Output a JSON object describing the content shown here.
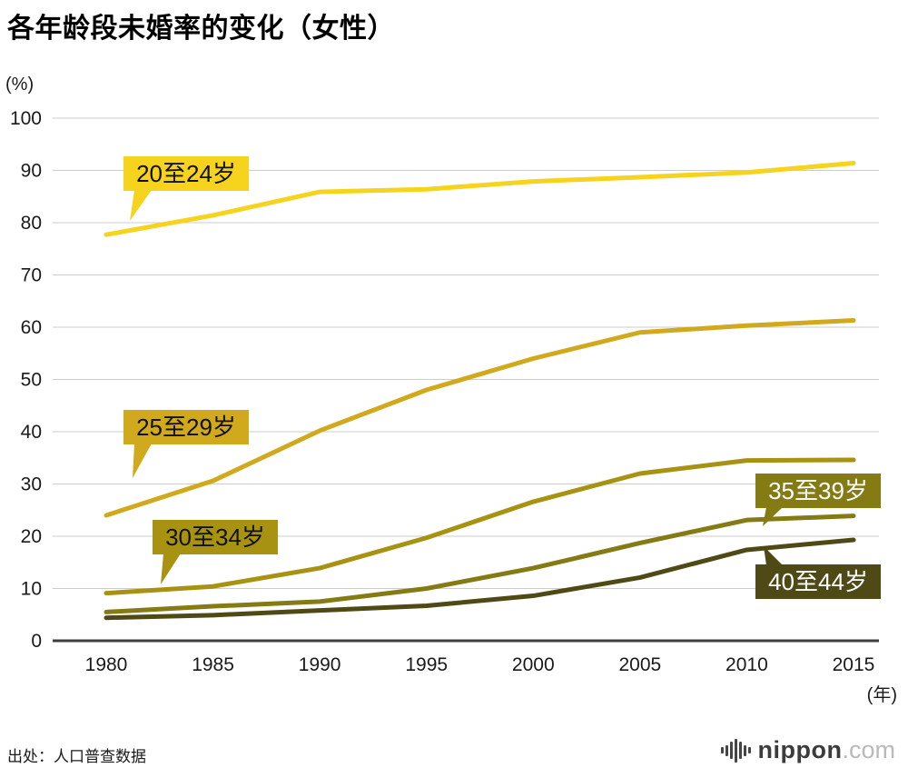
{
  "chart_data": {
    "type": "line",
    "title": "各年龄段未婚率的变化（女性）",
    "y_unit": "(%)",
    "x_unit": "(年)",
    "ylim": [
      0,
      100
    ],
    "y_ticks": [
      0,
      10,
      20,
      30,
      40,
      50,
      60,
      70,
      80,
      90,
      100
    ],
    "grid": "horizontal",
    "legend_position": "inline-labels",
    "categories": [
      1980,
      1985,
      1990,
      1995,
      2000,
      2005,
      2010,
      2015
    ],
    "series": [
      {
        "key": "age-20-24",
        "label": "20至24岁",
        "color": "#f6d31c",
        "label_text_color": "#111111",
        "values": [
          77.7,
          81.4,
          85.9,
          86.4,
          87.9,
          88.7,
          89.6,
          91.4
        ]
      },
      {
        "key": "age-25-29",
        "label": "25至29岁",
        "color": "#d1a91c",
        "label_text_color": "#111111",
        "values": [
          24.0,
          30.6,
          40.2,
          48.0,
          54.0,
          59.0,
          60.3,
          61.3
        ]
      },
      {
        "key": "age-30-34",
        "label": "30至34岁",
        "color": "#a89212",
        "label_text_color": "#111111",
        "values": [
          9.1,
          10.4,
          13.9,
          19.7,
          26.6,
          32.0,
          34.5,
          34.6
        ]
      },
      {
        "key": "age-35-39",
        "label": "35至39岁",
        "color": "#857b14",
        "label_text_color": "#ffffff",
        "values": [
          5.5,
          6.6,
          7.5,
          10.0,
          13.9,
          18.7,
          23.1,
          23.9
        ]
      },
      {
        "key": "age-40-44",
        "label": "40至44岁",
        "color": "#4f4a15",
        "label_text_color": "#ffffff",
        "values": [
          4.4,
          4.9,
          5.8,
          6.7,
          8.6,
          12.1,
          17.4,
          19.3
        ]
      }
    ],
    "colors": {
      "gridline": "#cccccc",
      "axis": "#3d3d3d",
      "tick_text": "#1a1a1a"
    }
  },
  "footer": {
    "source": "出处：人口普查数据",
    "logo_main": "nippon",
    "logo_suffix": ".com"
  }
}
